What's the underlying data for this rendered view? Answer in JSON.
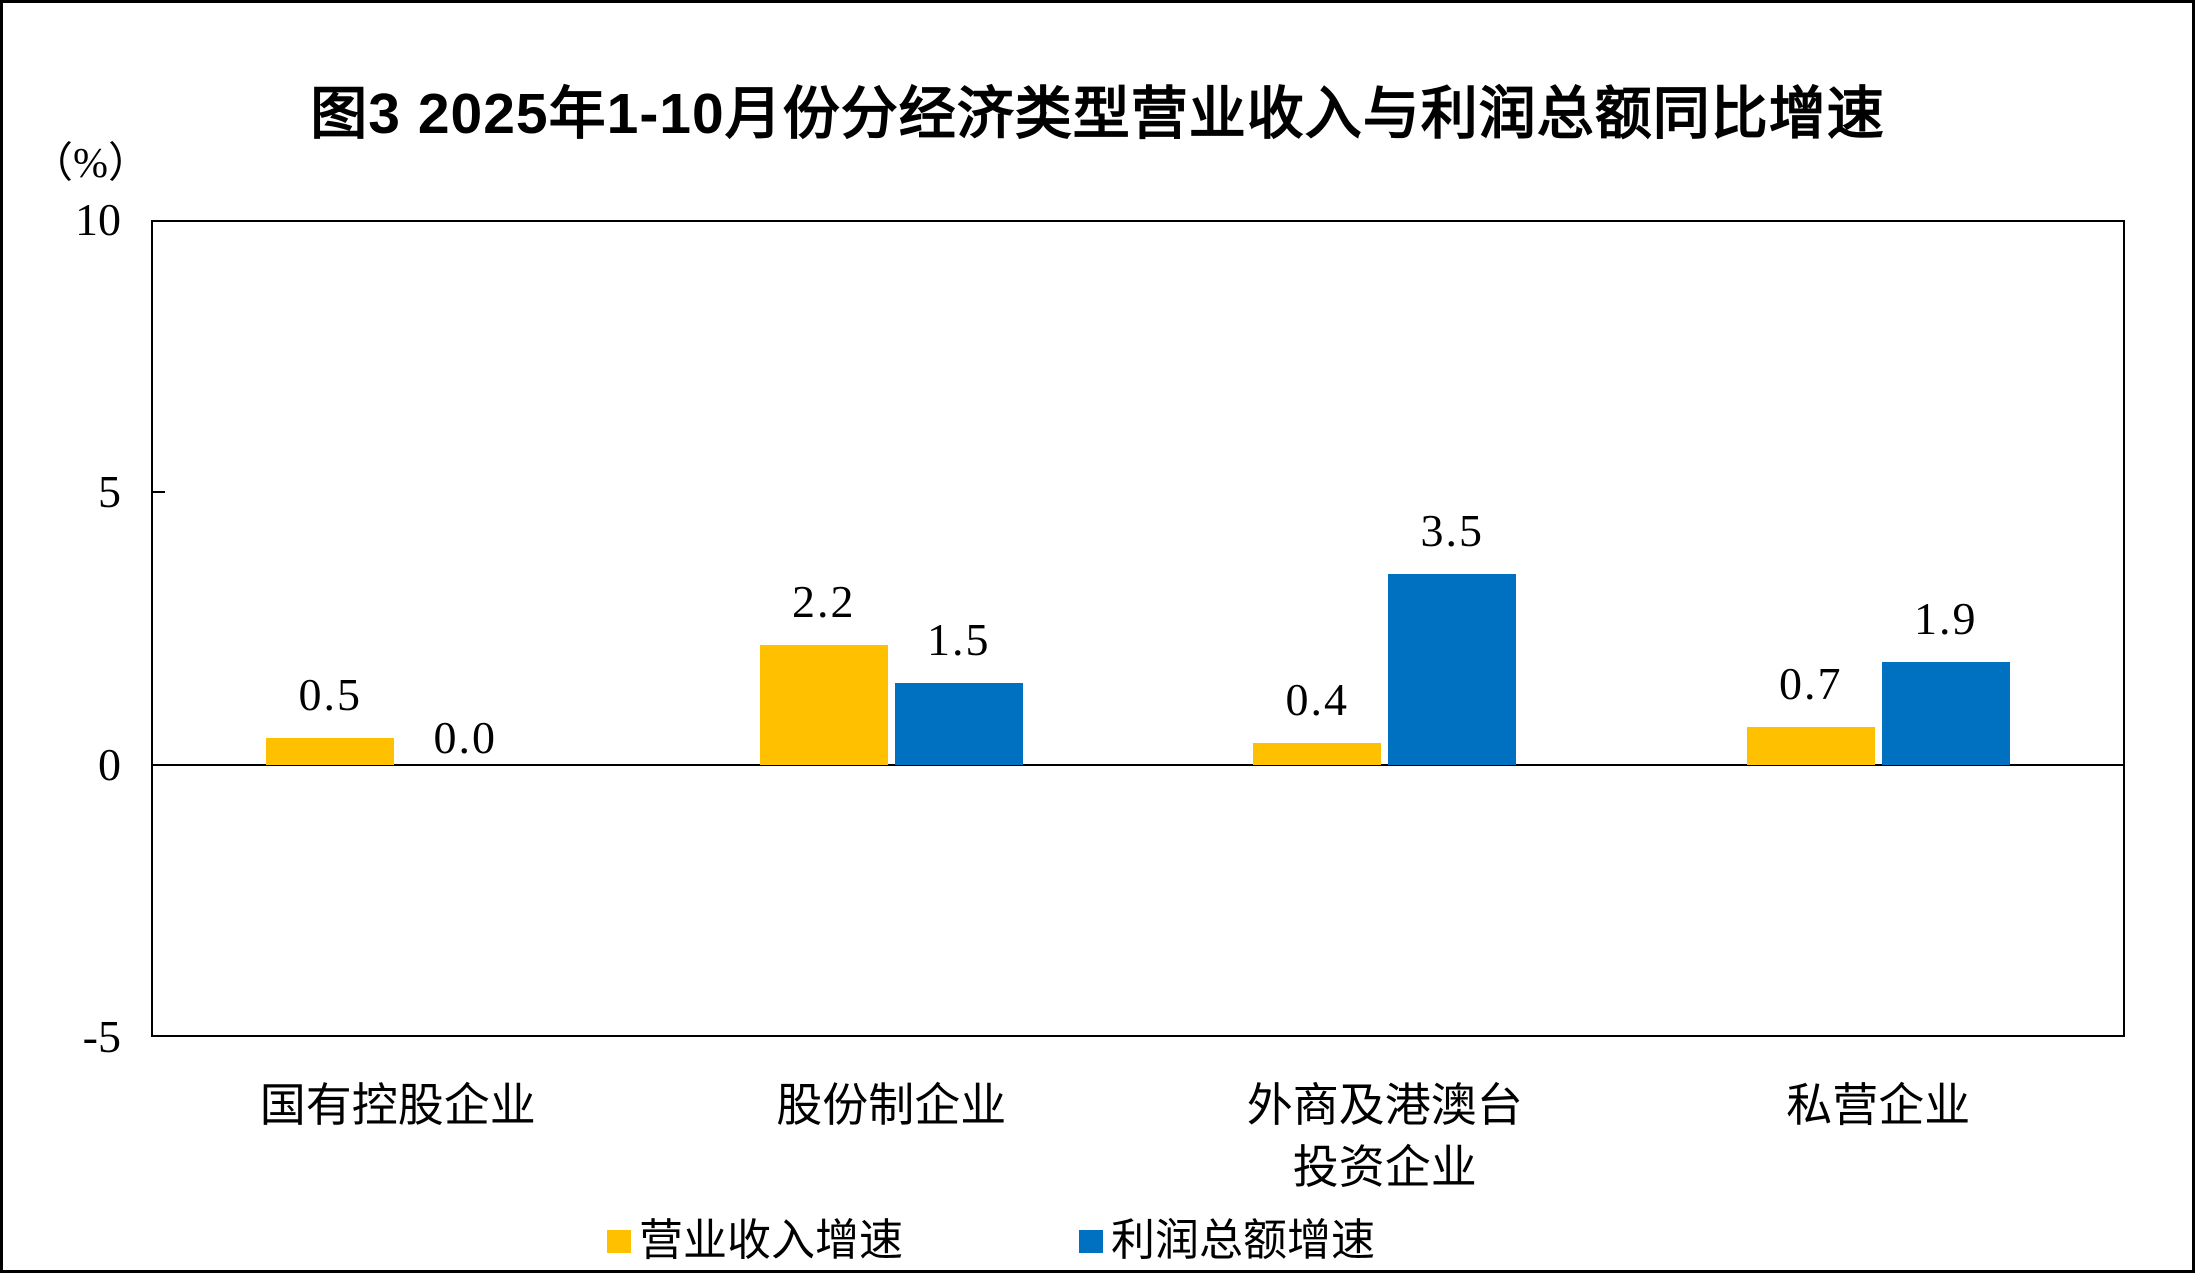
{
  "chart_data": {
    "type": "bar",
    "title": "图3 2025年1-10月份分经济类型营业收入与利润总额同比增速",
    "unit_label": "（%）",
    "categories": [
      "国有控股企业",
      "股份制企业",
      "外商及港澳台\n投资企业",
      "私营企业"
    ],
    "series": [
      {
        "name": "营业收入增速",
        "color": "#FFC000",
        "values": [
          0.5,
          2.2,
          0.4,
          0.7
        ],
        "labels": [
          "0.5",
          "2.2",
          "0.4",
          "0.7"
        ]
      },
      {
        "name": "利润总额增速",
        "color": "#0070C0",
        "values": [
          0.0,
          1.5,
          3.5,
          1.9
        ],
        "labels": [
          "0.0",
          "1.5",
          "3.5",
          "1.9"
        ]
      }
    ],
    "y_axis": {
      "min": -5,
      "max": 10,
      "ticks": [
        10,
        5,
        0,
        -5
      ],
      "tick_labels": [
        "10",
        "5",
        "0",
        "-5"
      ]
    },
    "legend_position": "bottom",
    "grid": false,
    "value_labels_shown": true,
    "frame_color": "#000000",
    "background_color": "#FFFFFF"
  }
}
